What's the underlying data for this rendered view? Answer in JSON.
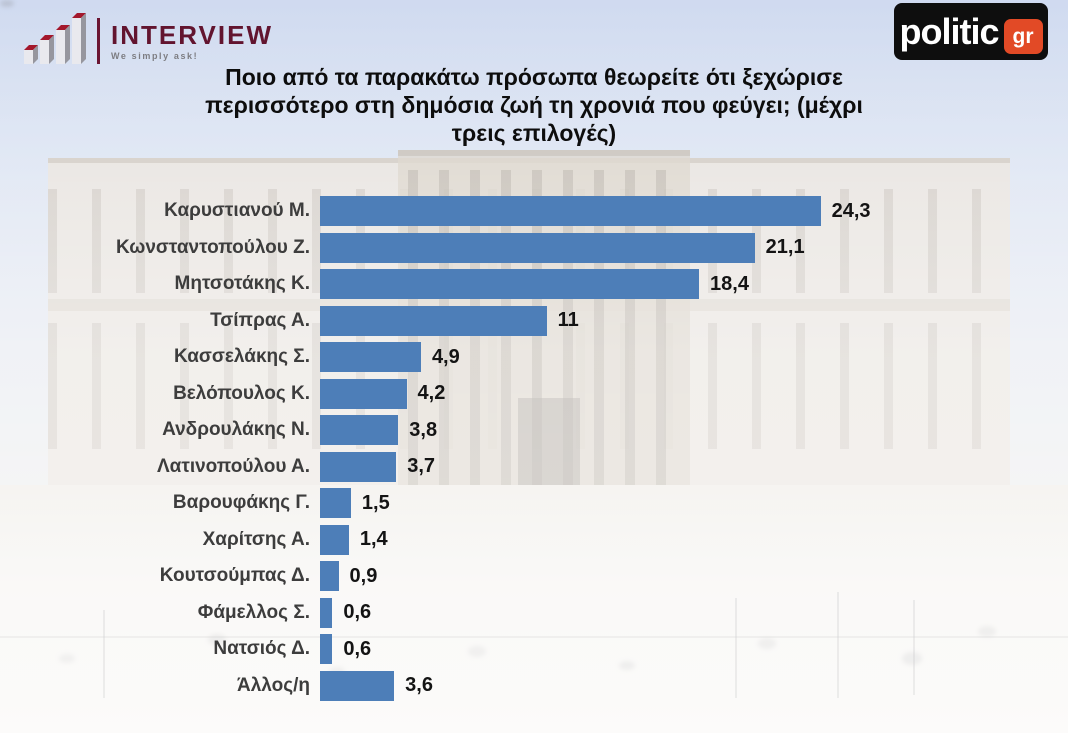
{
  "header": {
    "interview_logo": {
      "brand": "INTERVIEW",
      "tagline": "We simply ask!",
      "icon": "bar-chart-3d-icon",
      "brand_color": "#62142f"
    },
    "politic_logo": {
      "brand": "politic",
      "badge": "gr",
      "background_color": "#0e0e0e",
      "badge_color": "#e24a26"
    }
  },
  "title": {
    "lines": [
      "Ποιο από τα παρακάτω πρόσωπα θεωρείτε ότι ξεχώρισε",
      "περισσότερο στη δημόσια ζωή τη χρονιά που φεύγει; (μέχρι",
      "τρεις επιλογές)"
    ],
    "full": "Ποιο από τα παρακάτω πρόσωπα θεωρείτε ότι ξεχώρισε περισσότερο στη δημόσια ζωή τη χρονιά που φεύγει; (μέχρι τρεις επιλογές)"
  },
  "chart_data": {
    "type": "bar",
    "orientation": "horizontal",
    "title": "Ποιο από τα παρακάτω πρόσωπα θεωρείτε ότι ξεχώρισε περισσότερο στη δημόσια ζωή τη χρονιά που φεύγει; (μέχρι τρεις επιλογές)",
    "categories": [
      "Καρυστιανού Μ.",
      "Κωνσταντοπούλου Ζ.",
      "Μητσοτάκης Κ.",
      "Τσίπρας Α.",
      "Κασσελάκης Σ.",
      "Βελόπουλος Κ.",
      "Ανδρουλάκης Ν.",
      "Λατινοπούλου Α.",
      "Βαρουφάκης Γ.",
      "Χαρίτσης Α.",
      "Κουτσούμπας Δ.",
      "Φάμελλος Σ.",
      "Νατσιός Δ.",
      "Άλλος/η"
    ],
    "values": [
      24.3,
      21.1,
      18.4,
      11,
      4.9,
      4.2,
      3.8,
      3.7,
      1.5,
      1.4,
      0.9,
      0.6,
      0.6,
      3.6
    ],
    "values_display": [
      "24,3",
      "21,1",
      "18,4",
      "11",
      "4,9",
      "4,2",
      "3,8",
      "3,7",
      "1,5",
      "1,4",
      "0,9",
      "0,6",
      "0,6",
      "3,6"
    ],
    "xlim": [
      0,
      27
    ],
    "grid": false,
    "legend": false,
    "bar_color": "#4d7eb8",
    "value_label_color": "#141414",
    "category_label_color": "#3d3d3d"
  }
}
